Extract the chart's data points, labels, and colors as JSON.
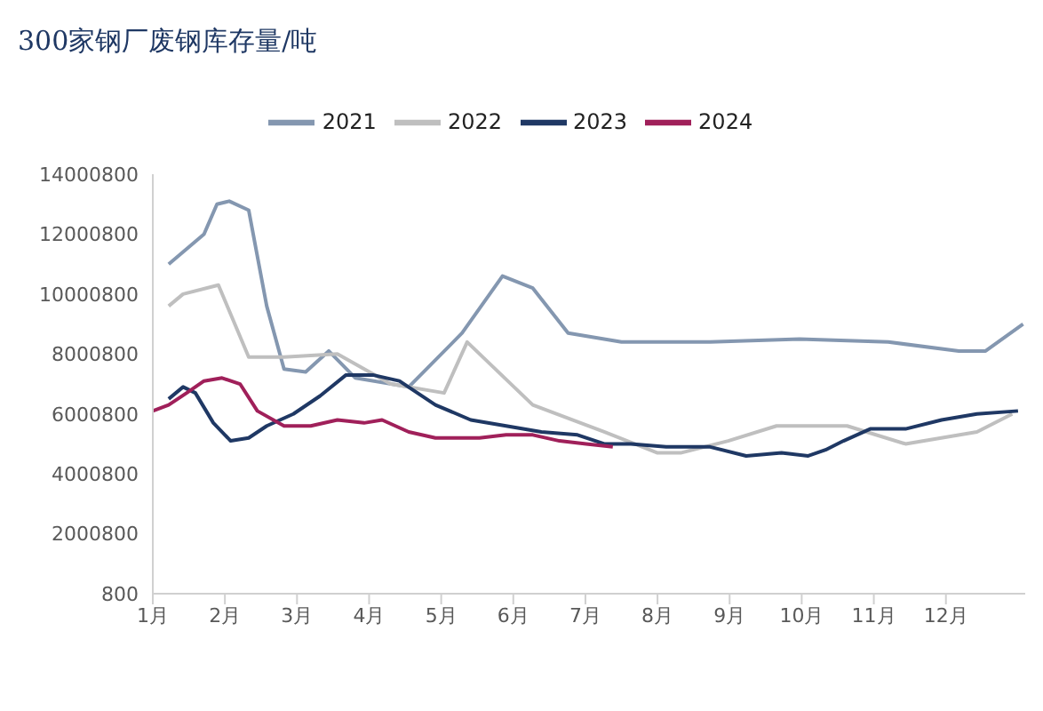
{
  "chart_data": {
    "type": "line",
    "title": "300家钢厂废钢库存量/吨",
    "xlim": [
      1,
      13.1
    ],
    "xticks": [
      {
        "value": 1,
        "label": "1月"
      },
      {
        "value": 2,
        "label": "2月"
      },
      {
        "value": 3,
        "label": "3月"
      },
      {
        "value": 4,
        "label": "4月"
      },
      {
        "value": 5,
        "label": "5月"
      },
      {
        "value": 6,
        "label": "6月"
      },
      {
        "value": 7,
        "label": "7月"
      },
      {
        "value": 8,
        "label": "8月"
      },
      {
        "value": 9,
        "label": "9月"
      },
      {
        "value": 10,
        "label": "10月"
      },
      {
        "value": 11,
        "label": "11月"
      },
      {
        "value": 12,
        "label": "12月"
      }
    ],
    "ylim": [
      800,
      14000800
    ],
    "yticks": [
      800,
      2000800,
      4000800,
      6000800,
      8000800,
      10000800,
      12000800,
      14000800
    ],
    "grid": false,
    "legend": "top",
    "marker": "none",
    "line_style": "solid",
    "series": [
      {
        "name": "2021",
        "color": "#8497b0",
        "x": [
          1.22,
          1.71,
          1.89,
          2.06,
          2.33,
          2.58,
          2.82,
          3.12,
          3.44,
          3.81,
          4.55,
          5.29,
          5.85,
          6.27,
          6.76,
          7.5,
          8.73,
          9.97,
          11.2,
          12.18,
          12.55,
          13.07
        ],
        "values": [
          11000000,
          12000000,
          13000000,
          13100000,
          12800000,
          9600000,
          7500000,
          7400000,
          8100000,
          7200000,
          6900000,
          8700000,
          10600000,
          10200000,
          8700000,
          8400000,
          8400000,
          8500000,
          8400000,
          8100000,
          8100000,
          9000000
        ]
      },
      {
        "name": "2022",
        "color": "#bfbfbf",
        "x": [
          1.22,
          1.42,
          1.91,
          2.33,
          2.82,
          3.56,
          4.3,
          5.04,
          5.36,
          6.27,
          7.26,
          8.0,
          8.32,
          8.98,
          9.65,
          10.63,
          11.44,
          12.43,
          12.92
        ],
        "values": [
          9600000,
          10000000,
          10300000,
          7900000,
          7900000,
          8000000,
          7000000,
          6700000,
          8400000,
          6300000,
          5400000,
          4700000,
          4700000,
          5100000,
          5600000,
          5600000,
          5000000,
          5400000,
          6000000
        ]
      },
      {
        "name": "2023",
        "color": "#1f3864",
        "x": [
          1.22,
          1.42,
          1.59,
          1.84,
          2.08,
          2.33,
          2.58,
          2.95,
          3.32,
          3.68,
          4.05,
          4.42,
          4.92,
          5.41,
          5.9,
          6.39,
          6.89,
          7.26,
          7.63,
          8.12,
          8.73,
          9.23,
          9.72,
          10.09,
          10.33,
          10.58,
          10.95,
          11.44,
          11.94,
          12.43,
          13.0
        ],
        "values": [
          6500000,
          6900000,
          6700000,
          5700000,
          5100000,
          5200000,
          5600000,
          6000000,
          6600000,
          7300000,
          7300000,
          7100000,
          6300000,
          5800000,
          5600000,
          5400000,
          5300000,
          5000000,
          5000000,
          4900000,
          4900000,
          4600000,
          4700000,
          4600000,
          4800000,
          5100000,
          5500000,
          5500000,
          5800000,
          6000000,
          6100000
        ]
      },
      {
        "name": "2024",
        "color": "#a0205a",
        "x": [
          1.0,
          1.22,
          1.47,
          1.71,
          1.96,
          2.21,
          2.45,
          2.82,
          3.19,
          3.56,
          3.93,
          4.18,
          4.55,
          4.92,
          5.16,
          5.53,
          5.9,
          6.27,
          6.64,
          7.01,
          7.38
        ],
        "values": [
          6100000,
          6300000,
          6700000,
          7100000,
          7200000,
          7000000,
          6100000,
          5600000,
          5600000,
          5800000,
          5700000,
          5800000,
          5400000,
          5200000,
          5200000,
          5200000,
          5300000,
          5300000,
          5100000,
          5000000,
          4900000
        ]
      }
    ]
  }
}
